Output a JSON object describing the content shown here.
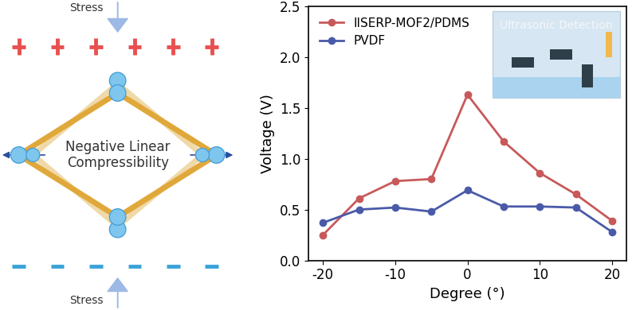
{
  "chart_data": {
    "type": "line",
    "x": [
      -20,
      -15,
      -10,
      -5,
      0,
      5,
      10,
      15,
      20
    ],
    "series": [
      {
        "name": "IISERP-MOF2/PDMS",
        "color": "#c8595b",
        "marker": "o",
        "line_style": "solid",
        "values": [
          0.25,
          0.61,
          0.78,
          0.8,
          1.63,
          1.17,
          0.86,
          0.65,
          0.39
        ]
      },
      {
        "name": "PVDF",
        "color": "#4a5aa8",
        "marker": "o",
        "line_style": "solid",
        "values": [
          0.37,
          0.5,
          0.52,
          0.48,
          0.69,
          0.53,
          0.53,
          0.52,
          0.28
        ]
      }
    ],
    "x_label": "Degree (°)",
    "y_label": "Voltage (V)",
    "xlim": [
      -22,
      22
    ],
    "xticks": [
      -20,
      -10,
      0,
      10,
      20
    ],
    "ylim": [
      0,
      2.5
    ],
    "yticks": [
      {
        "value": 0,
        "label": "0.0"
      },
      0.5,
      {
        "value": 1,
        "label": "1.0"
      },
      1.5,
      {
        "value": 2,
        "label": "2.0"
      },
      2.5
    ],
    "legend": "upper left",
    "grid": false,
    "annotations": [
      "Ultrasonic Detection"
    ]
  },
  "diagram": {
    "stress_top": "Stress",
    "stress_bottom": "Stress",
    "center_label": "Negative Linear\nCompressibility"
  }
}
